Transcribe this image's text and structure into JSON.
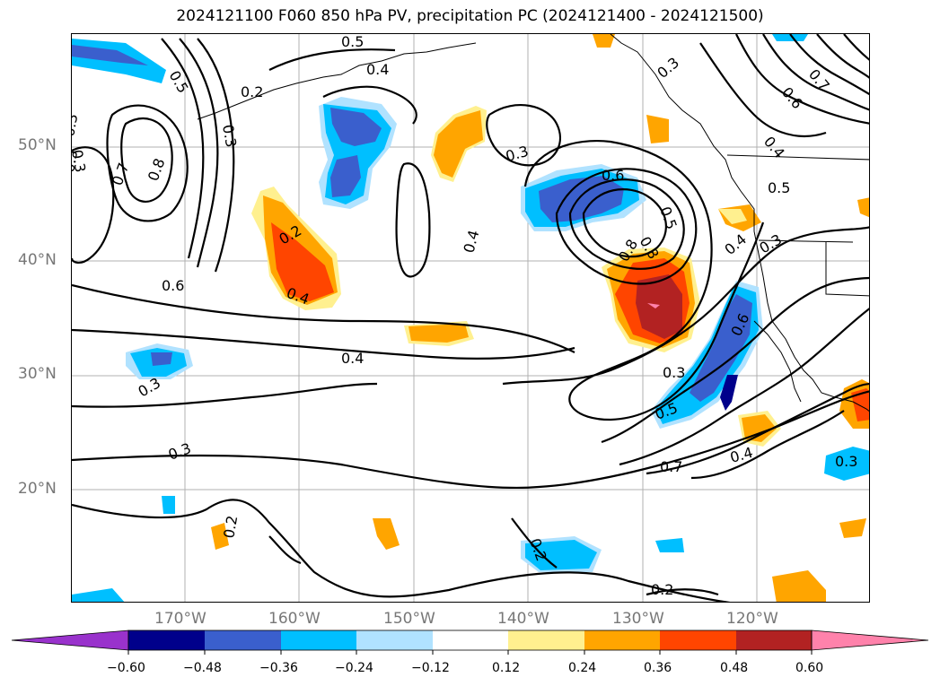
{
  "title": "2024121100 F060 850 hPa PV, precipitation PC (2024121400 - 2024121500)",
  "lat_labels": [
    "50°N",
    "40°N",
    "30°N",
    "20°N"
  ],
  "lon_labels": [
    "170°W",
    "160°W",
    "150°W",
    "140°W",
    "130°W",
    "120°W"
  ],
  "contour_labels": [
    "0.5",
    "0.4",
    "0.3",
    "0.2",
    "0.3",
    "0.5",
    "0.8",
    "0.7",
    "0.5",
    "0.3",
    "0.2",
    "0.4",
    "0.4",
    "0.6",
    "0.3",
    "0.6",
    "0.4",
    "0.5",
    "0.8",
    "0.8",
    "0.3",
    "0.3",
    "0.4",
    "0.6",
    "0.3",
    "0.3",
    "0.5",
    "0.7",
    "0.4",
    "0.3",
    "0.2",
    "0.2",
    "0.2",
    "0.4",
    "0.6",
    "0.7",
    "0.5",
    "0.3"
  ],
  "colorbar": {
    "tick_labels": [
      "−0.60",
      "−0.48",
      "−0.36",
      "−0.24",
      "−0.12",
      "0.12",
      "0.24",
      "0.36",
      "0.48",
      "0.60"
    ],
    "colors": [
      "#9932cc",
      "#00008b",
      "#3a5fcd",
      "#00bfff",
      "#b0e2ff",
      "#ffffff",
      "#fff08f",
      "#ffa500",
      "#ff4500",
      "#b22222",
      "#ff82ab"
    ]
  }
}
